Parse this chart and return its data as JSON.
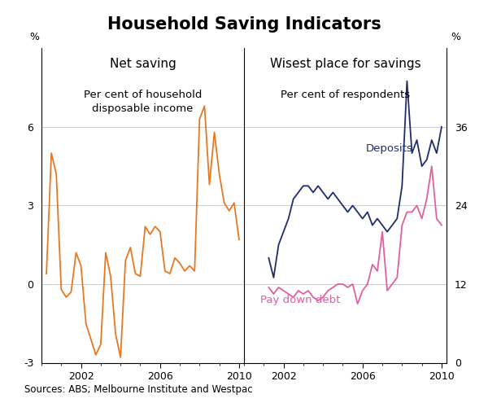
{
  "title": "Household Saving Indicators",
  "title_fontsize": 15,
  "left_panel_title": "Net saving",
  "left_panel_subtitle": "Per cent of household\ndisposable income",
  "right_panel_title": "Wisest place for savings",
  "right_panel_subtitle": "Per cent of respondents",
  "left_ylabel": "%",
  "right_ylabel": "%",
  "source_text": "Sources: ABS; Melbourne Institute and Westpac",
  "left_ylim": [
    -3,
    9
  ],
  "left_yticks": [
    -3,
    0,
    3,
    6
  ],
  "right_ylim": [
    0,
    48
  ],
  "right_yticks": [
    0,
    12,
    24,
    36
  ],
  "orange_color": "#E87722",
  "deposits_color": "#1F2D6E",
  "paydown_color": "#E05FA0",
  "background_color": "#FFFFFF",
  "net_saving_x": [
    2000.25,
    2000.5,
    2000.75,
    2001.0,
    2001.25,
    2001.5,
    2001.75,
    2002.0,
    2002.25,
    2002.5,
    2002.75,
    2003.0,
    2003.25,
    2003.5,
    2003.75,
    2004.0,
    2004.25,
    2004.5,
    2004.75,
    2005.0,
    2005.25,
    2005.5,
    2005.75,
    2006.0,
    2006.25,
    2006.5,
    2006.75,
    2007.0,
    2007.25,
    2007.5,
    2007.75,
    2008.0,
    2008.25,
    2008.5,
    2008.75,
    2009.0,
    2009.25,
    2009.5,
    2009.75,
    2010.0
  ],
  "net_saving_y": [
    0.4,
    5.0,
    4.2,
    -0.2,
    -0.5,
    -0.3,
    1.2,
    0.7,
    -1.5,
    -2.1,
    -2.7,
    -2.3,
    1.2,
    0.3,
    -1.9,
    -2.8,
    0.9,
    1.4,
    0.4,
    0.3,
    2.2,
    1.9,
    2.2,
    2.0,
    0.5,
    0.4,
    1.0,
    0.8,
    0.5,
    0.7,
    0.5,
    6.3,
    6.8,
    3.8,
    5.8,
    4.2,
    3.1,
    2.8,
    3.1,
    1.7
  ],
  "deposits_x": [
    2001.25,
    2001.5,
    2001.75,
    2002.0,
    2002.25,
    2002.5,
    2002.75,
    2003.0,
    2003.25,
    2003.5,
    2003.75,
    2004.0,
    2004.25,
    2004.5,
    2004.75,
    2005.0,
    2005.25,
    2005.5,
    2005.75,
    2006.0,
    2006.25,
    2006.5,
    2006.75,
    2007.0,
    2007.25,
    2007.5,
    2007.75,
    2008.0,
    2008.25,
    2008.5,
    2008.75,
    2009.0,
    2009.25,
    2009.5,
    2009.75,
    2010.0
  ],
  "deposits_y": [
    16,
    13,
    18,
    20,
    22,
    25,
    26,
    27,
    27,
    26,
    27,
    26,
    25,
    26,
    25,
    24,
    23,
    24,
    23,
    22,
    23,
    21,
    22,
    21,
    20,
    21,
    22,
    27,
    43,
    32,
    34,
    30,
    31,
    34,
    32,
    36
  ],
  "paydown_x": [
    2001.25,
    2001.5,
    2001.75,
    2002.0,
    2002.25,
    2002.5,
    2002.75,
    2003.0,
    2003.25,
    2003.5,
    2003.75,
    2004.0,
    2004.25,
    2004.5,
    2004.75,
    2005.0,
    2005.25,
    2005.5,
    2005.75,
    2006.0,
    2006.25,
    2006.5,
    2006.75,
    2007.0,
    2007.25,
    2007.5,
    2007.75,
    2008.0,
    2008.25,
    2008.5,
    2008.75,
    2009.0,
    2009.25,
    2009.5,
    2009.75,
    2010.0
  ],
  "paydown_y": [
    11.5,
    10.5,
    11.5,
    11,
    10.5,
    10,
    11,
    10.5,
    11,
    10,
    9.5,
    10,
    11,
    11.5,
    12,
    12,
    11.5,
    12,
    9,
    11,
    12,
    15,
    14,
    20,
    11,
    12,
    13,
    21,
    23,
    23,
    24,
    22,
    25,
    30,
    22,
    21
  ]
}
